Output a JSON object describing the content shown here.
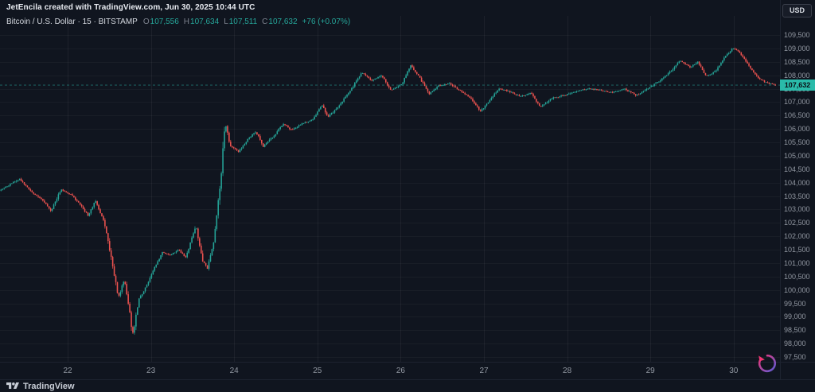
{
  "header": {
    "attribution": "JetEncila created with TradingView.com, Jun 30, 2025 10:44 UTC",
    "currency_button": "USD"
  },
  "symbol_bar": {
    "title": "Bitcoin / U.S. Dollar · 15 · BITSTAMP",
    "ohlc": {
      "open_label": "O",
      "open": "107,556",
      "high_label": "H",
      "high": "107,634",
      "low_label": "L",
      "low": "107,511",
      "close_label": "C",
      "close": "107,632",
      "change": "+76 (+0.07%)"
    }
  },
  "footer": {
    "logo_text": "TradingView"
  },
  "last_price_label": "107,632",
  "colors": {
    "background": "#10151f",
    "up": "#26a69a",
    "down": "#ef5350",
    "grid_h": "rgba(255,255,255,0.04)",
    "grid_v": "rgba(255,255,255,0.055)",
    "axis_text": "#9298a2",
    "tag_bg": "#2abbaa",
    "tag_text": "#0b1016",
    "legend_text": "#d5d9e0",
    "muted_label": "#7e838f",
    "attribution_text": "#e8ebf1"
  },
  "chart_data": {
    "type": "candlestick",
    "symbol": "Bitcoin / U.S. Dollar",
    "exchange": "BITSTAMP",
    "interval_minutes": 15,
    "grid": true,
    "x_axis": {
      "labels": [
        "22",
        "23",
        "24",
        "25",
        "26",
        "27",
        "28",
        "29",
        "30"
      ],
      "first_day": 22
    },
    "y_axis": {
      "min": 97500,
      "max": 109500,
      "step": 500
    },
    "last_candle": {
      "open": 107556,
      "high": 107634,
      "low": 107511,
      "close": 107632,
      "change": 76,
      "change_pct": 0.07
    },
    "last_price": 107632,
    "day_range": [
      21.19,
      30.51
    ],
    "price_path": [
      [
        21.19,
        103700
      ],
      [
        21.33,
        103950
      ],
      [
        21.43,
        104150
      ],
      [
        21.57,
        103650
      ],
      [
        21.71,
        103350
      ],
      [
        21.81,
        102950
      ],
      [
        21.93,
        103750
      ],
      [
        22.05,
        103550
      ],
      [
        22.14,
        103250
      ],
      [
        22.26,
        102750
      ],
      [
        22.34,
        103350
      ],
      [
        22.45,
        102500
      ],
      [
        22.54,
        101100
      ],
      [
        22.62,
        99700
      ],
      [
        22.69,
        100400
      ],
      [
        22.75,
        99300
      ],
      [
        22.79,
        98300
      ],
      [
        22.86,
        99600
      ],
      [
        22.96,
        100200
      ],
      [
        23.05,
        100800
      ],
      [
        23.15,
        101400
      ],
      [
        23.24,
        101300
      ],
      [
        23.34,
        101500
      ],
      [
        23.43,
        101200
      ],
      [
        23.55,
        102400
      ],
      [
        23.63,
        101100
      ],
      [
        23.69,
        100800
      ],
      [
        23.77,
        101900
      ],
      [
        23.85,
        104200
      ],
      [
        23.9,
        106300
      ],
      [
        23.96,
        105400
      ],
      [
        24.06,
        105150
      ],
      [
        24.17,
        105600
      ],
      [
        24.27,
        105900
      ],
      [
        24.36,
        105350
      ],
      [
        24.49,
        105750
      ],
      [
        24.6,
        106200
      ],
      [
        24.7,
        105950
      ],
      [
        24.82,
        106200
      ],
      [
        24.96,
        106350
      ],
      [
        25.06,
        106900
      ],
      [
        25.14,
        106450
      ],
      [
        25.25,
        106800
      ],
      [
        25.39,
        107350
      ],
      [
        25.54,
        108100
      ],
      [
        25.66,
        107800
      ],
      [
        25.78,
        108000
      ],
      [
        25.89,
        107450
      ],
      [
        26.02,
        107650
      ],
      [
        26.13,
        108350
      ],
      [
        26.24,
        107900
      ],
      [
        26.35,
        107300
      ],
      [
        26.46,
        107600
      ],
      [
        26.59,
        107700
      ],
      [
        26.71,
        107450
      ],
      [
        26.85,
        107150
      ],
      [
        26.97,
        106650
      ],
      [
        27.07,
        107050
      ],
      [
        27.19,
        107500
      ],
      [
        27.31,
        107400
      ],
      [
        27.45,
        107200
      ],
      [
        27.57,
        107350
      ],
      [
        27.69,
        106800
      ],
      [
        27.83,
        107150
      ],
      [
        27.98,
        107250
      ],
      [
        28.12,
        107400
      ],
      [
        28.26,
        107500
      ],
      [
        28.41,
        107450
      ],
      [
        28.55,
        107350
      ],
      [
        28.69,
        107500
      ],
      [
        28.84,
        107250
      ],
      [
        28.98,
        107500
      ],
      [
        29.12,
        107800
      ],
      [
        29.27,
        108200
      ],
      [
        29.36,
        108550
      ],
      [
        29.49,
        108300
      ],
      [
        29.58,
        108500
      ],
      [
        29.68,
        107950
      ],
      [
        29.79,
        108150
      ],
      [
        29.91,
        108700
      ],
      [
        30,
        109000
      ],
      [
        30.08,
        108850
      ],
      [
        30.17,
        108450
      ],
      [
        30.29,
        107950
      ],
      [
        30.38,
        107750
      ],
      [
        30.51,
        107632
      ]
    ]
  }
}
